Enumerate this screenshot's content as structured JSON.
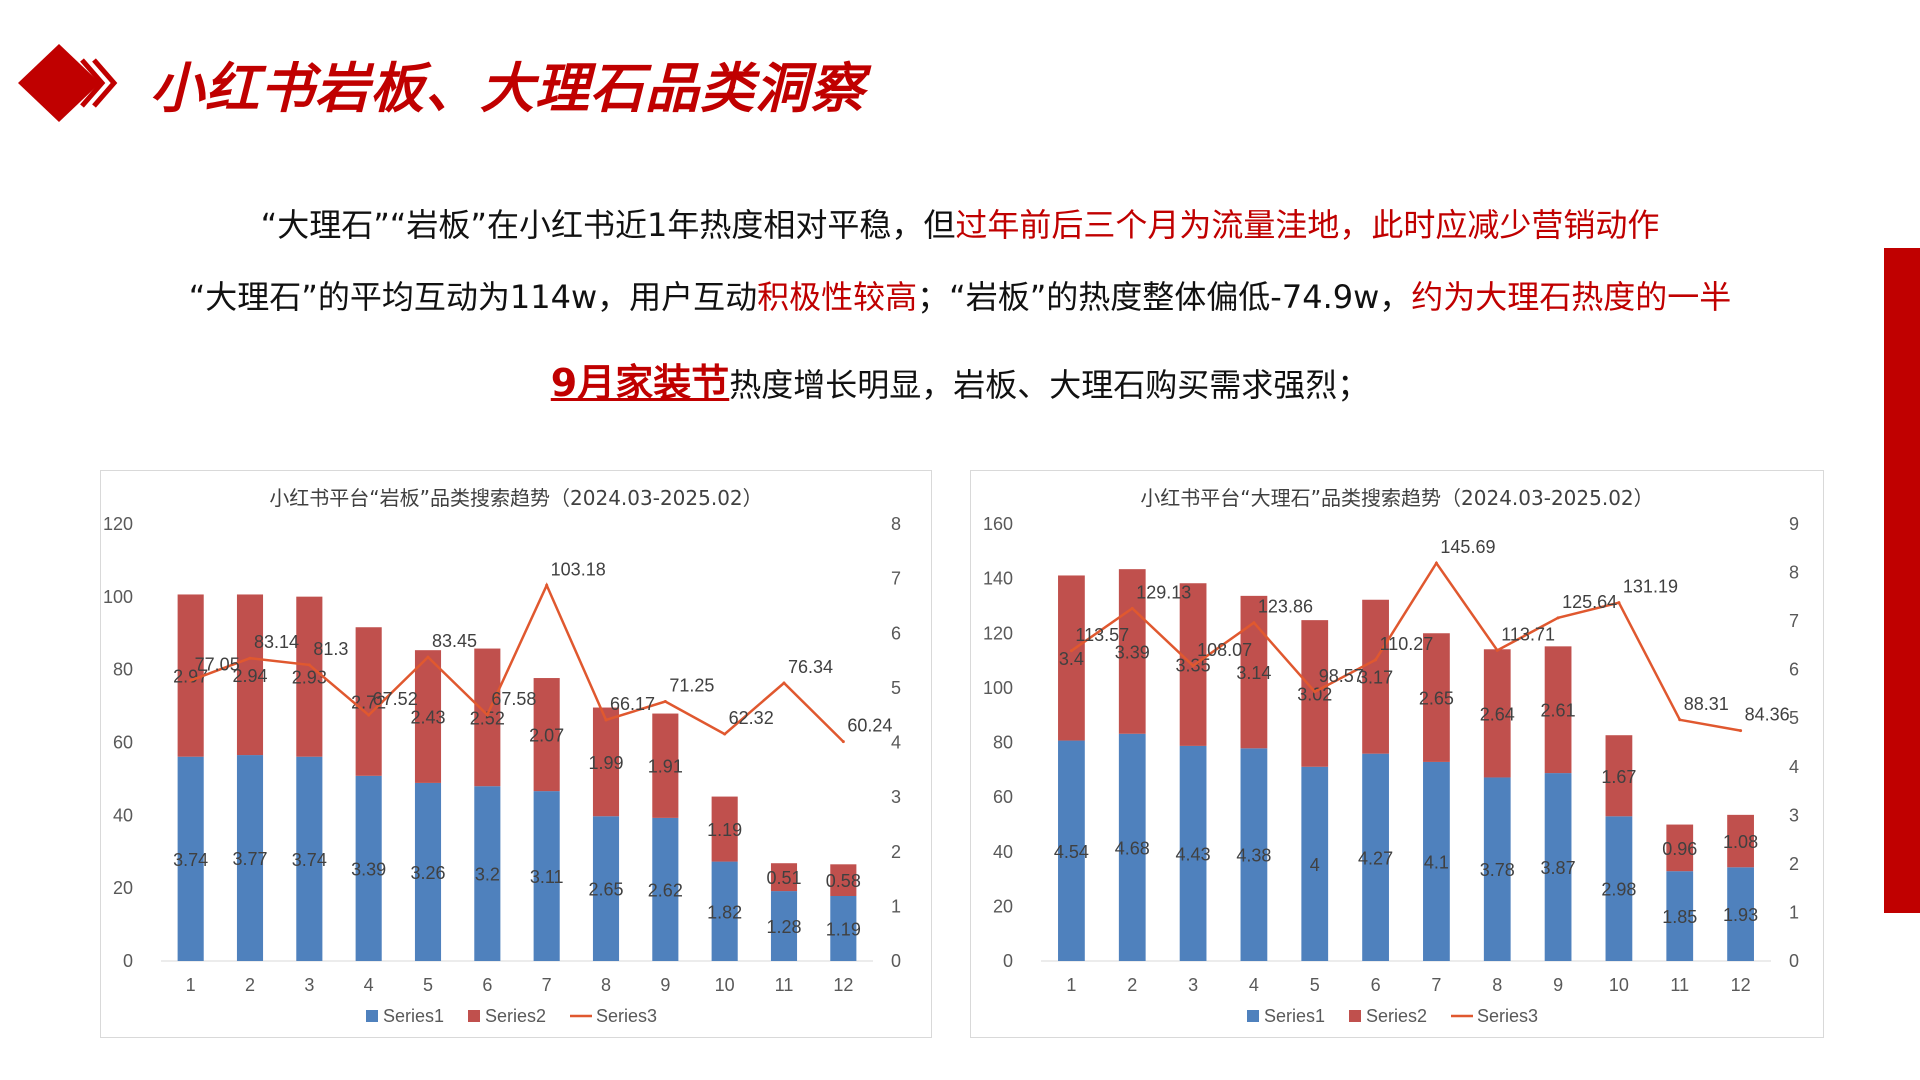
{
  "header": {
    "title": "小红书岩板、大理石品类洞察"
  },
  "insights": {
    "line1": {
      "normal": "“大理石”“岩板”在小红书近1年热度相对平稳，但",
      "highlight": "过年前后三个月为流量洼地，此时应减少营销动作"
    },
    "line2": {
      "part1": "“大理石”的平均互动为114w，用户互动",
      "highlight1": "积极性较高",
      "part2": "；“岩板”的热度整体偏低-74.9w，",
      "highlight2": "约为大理石热度的一半"
    },
    "line3": {
      "highlight": "9月家装节",
      "normal": "热度增长明显，岩板、大理石购买需求强烈；"
    }
  },
  "colors": {
    "accent": "#c00000",
    "series1": "#4f81bd",
    "series2": "#c0504d",
    "series3": "#e0582f"
  },
  "chart_data": [
    {
      "type": "bar",
      "stacked": true,
      "title": "小红书平台“岩板”品类搜索趋势（2024.03-2025.02）",
      "categories": [
        "1",
        "2",
        "3",
        "4",
        "5",
        "6",
        "7",
        "8",
        "9",
        "10",
        "11",
        "12"
      ],
      "y_left": {
        "min": 0,
        "max": 120,
        "step": 20
      },
      "y_right": {
        "min": 0,
        "max": 8,
        "step": 1
      },
      "series": [
        {
          "name": "Series1",
          "kind": "bar",
          "axis": "right",
          "values": [
            3.74,
            3.77,
            3.74,
            3.39,
            3.26,
            3.2,
            3.11,
            2.65,
            2.62,
            1.82,
            1.28,
            1.19
          ]
        },
        {
          "name": "Series2",
          "kind": "bar",
          "axis": "right",
          "values": [
            2.97,
            2.94,
            2.93,
            2.72,
            2.43,
            2.52,
            2.07,
            1.99,
            1.91,
            1.19,
            0.51,
            0.58
          ]
        },
        {
          "name": "Series3",
          "kind": "line",
          "axis": "left",
          "values": [
            77.05,
            83.14,
            81.3,
            67.52,
            83.45,
            67.58,
            103.18,
            66.17,
            71.25,
            62.32,
            76.34,
            60.24
          ]
        }
      ],
      "legend": "bottom",
      "grid": false
    },
    {
      "type": "bar",
      "stacked": true,
      "title": "小红书平台“大理石”品类搜索趋势（2024.03-2025.02）",
      "categories": [
        "1",
        "2",
        "3",
        "4",
        "5",
        "6",
        "7",
        "8",
        "9",
        "10",
        "11",
        "12"
      ],
      "y_left": {
        "min": 0,
        "max": 160,
        "step": 20
      },
      "y_right": {
        "min": 0,
        "max": 9,
        "step": 1
      },
      "series": [
        {
          "name": "Series1",
          "kind": "bar",
          "axis": "right",
          "values": [
            4.54,
            4.68,
            4.43,
            4.38,
            4,
            4.27,
            4.1,
            3.78,
            3.87,
            2.98,
            1.85,
            1.93
          ]
        },
        {
          "name": "Series2",
          "kind": "bar",
          "axis": "right",
          "values": [
            3.4,
            3.39,
            3.35,
            3.14,
            3.02,
            3.17,
            2.65,
            2.64,
            2.61,
            1.67,
            0.96,
            1.08
          ]
        },
        {
          "name": "Series3",
          "kind": "line",
          "axis": "left",
          "values": [
            113.57,
            129.13,
            108.07,
            123.86,
            98.57,
            110.27,
            145.69,
            113.71,
            125.64,
            131.19,
            88.31,
            84.36
          ]
        }
      ],
      "legend": "bottom",
      "grid": false
    }
  ]
}
